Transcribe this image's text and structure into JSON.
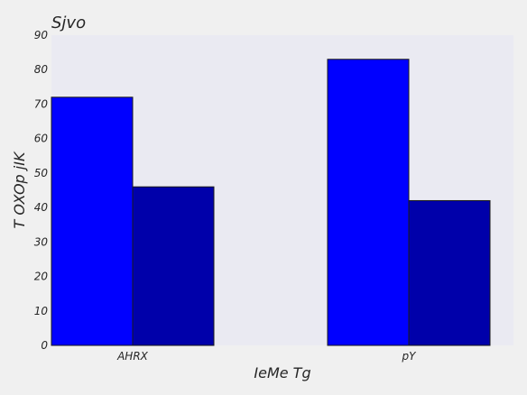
{
  "chart_data": {
    "type": "bar",
    "title": "Sjvo",
    "xlabel": "IeMe  Tg",
    "ylabel": "T OXOp jIK",
    "categories": [
      "AHRX",
      "pY"
    ],
    "series": [
      {
        "values": [
          72,
          83
        ],
        "color": "#0000ff"
      },
      {
        "values": [
          46,
          42
        ],
        "color": "#0000aa"
      }
    ],
    "ylim": [
      0,
      90
    ],
    "yticks": [
      0,
      10,
      20,
      30,
      40,
      50,
      60,
      70,
      80,
      90
    ],
    "grid": false,
    "legend": "none"
  }
}
